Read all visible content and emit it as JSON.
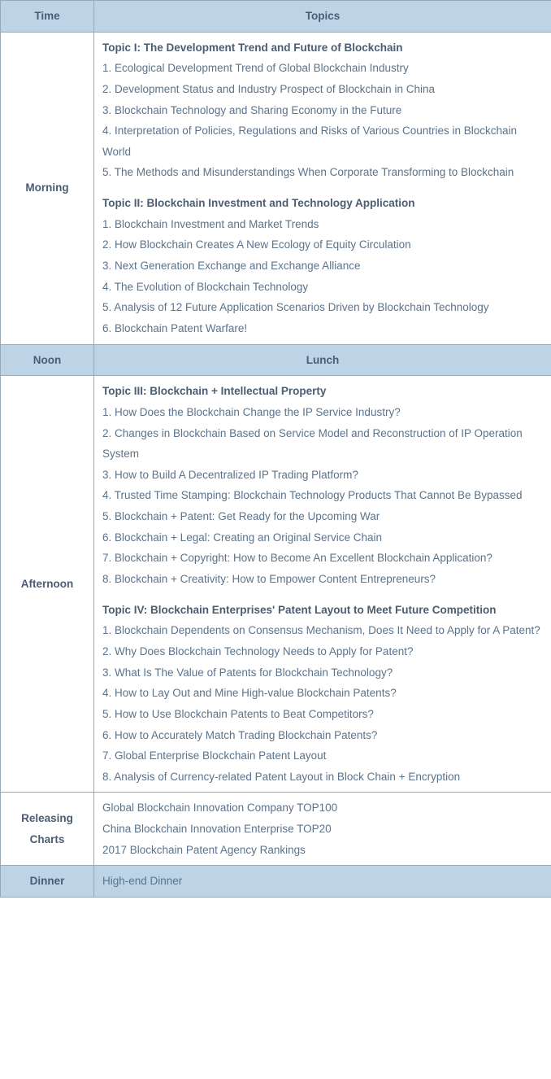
{
  "headers": {
    "time": "Time",
    "topics": "Topics"
  },
  "morning": {
    "label": "Morning",
    "topic1": {
      "title": "Topic I: The Development Trend and Future of Blockchain",
      "items": [
        "1. Ecological Development Trend of Global Blockchain Industry",
        "2. Development Status and Industry Prospect of Blockchain in China",
        "3. Blockchain Technology and Sharing Economy in the Future",
        "4. Interpretation of Policies, Regulations and Risks of Various Countries in Blockchain World",
        "5. The Methods and Misunderstandings When Corporate Transforming to Blockchain"
      ]
    },
    "topic2": {
      "title": "Topic II: Blockchain Investment and Technology Application",
      "items": [
        "1. Blockchain Investment and Market Trends",
        "2. How Blockchain Creates A New Ecology of Equity Circulation",
        "3. Next Generation Exchange and Exchange Alliance",
        "4. The Evolution of Blockchain Technology",
        "5. Analysis of 12 Future Application Scenarios Driven by Blockchain Technology",
        "6. Blockchain Patent Warfare!"
      ]
    }
  },
  "noon": {
    "label": "Noon",
    "text": "Lunch"
  },
  "afternoon": {
    "label": "Afternoon",
    "topic3": {
      "title": "Topic III: Blockchain + Intellectual Property",
      "items": [
        "1. How Does the Blockchain Change the IP Service Industry?",
        "2. Changes in Blockchain Based on Service Model and Reconstruction of IP Operation System",
        "3. How to Build A Decentralized IP Trading Platform?",
        "4. Trusted Time Stamping: Blockchain Technology Products That Cannot Be Bypassed",
        "5. Blockchain + Patent: Get Ready for the Upcoming War",
        "6. Blockchain + Legal: Creating an Original Service Chain",
        "7. Blockchain + Copyright: How to Become An Excellent Blockchain Application?",
        "8. Blockchain + Creativity: How to Empower Content Entrepreneurs?"
      ]
    },
    "topic4": {
      "title": "Topic IV: Blockchain Enterprises' Patent Layout to Meet Future Competition",
      "items": [
        "1. Blockchain Dependents on Consensus Mechanism, Does It Need to Apply for A Patent?",
        "2. Why Does Blockchain Technology Needs to Apply for Patent?",
        "3. What Is The Value of Patents for Blockchain Technology?",
        "4. How to Lay Out and Mine High-value Blockchain Patents?",
        "5. How to Use Blockchain Patents to Beat Competitors?",
        "6. How to Accurately Match Trading Blockchain Patents?",
        "7. Global Enterprise Blockchain Patent Layout",
        "8. Analysis of Currency-related Patent Layout in Block Chain + Encryption"
      ]
    }
  },
  "charts": {
    "label": "Releasing Charts",
    "items": [
      "Global Blockchain Innovation Company TOP100",
      "China Blockchain Innovation Enterprise TOP20",
      "2017 Blockchain Patent Agency Rankings"
    ]
  },
  "dinner": {
    "label": "Dinner",
    "text": "High-end Dinner"
  },
  "colors": {
    "header_bg": "#bcd4e6",
    "border": "#9aa8b8",
    "text": "#5b738b",
    "bold_text": "#4a5d73"
  }
}
